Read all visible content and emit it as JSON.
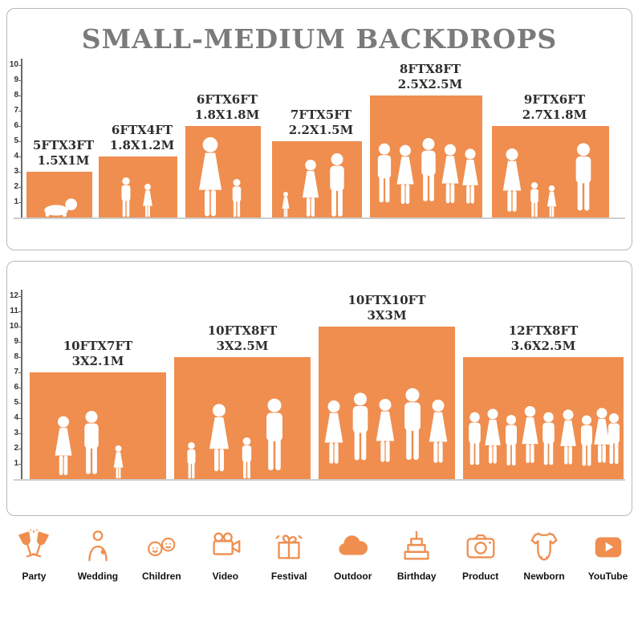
{
  "title": "SMALL-MEDIUM BACKDROPS",
  "colors": {
    "accent": "#EF8E4F",
    "title": "#7A7A7A",
    "label": "#2D2D2D"
  },
  "top_chart": {
    "ruler_max": 10,
    "items": [
      {
        "size_ft": "5FTX3FT",
        "size_m": "1.5X1M"
      },
      {
        "size_ft": "6FTX4FT",
        "size_m": "1.8X1.2M"
      },
      {
        "size_ft": "6FTX6FT",
        "size_m": "1.8X1.8M"
      },
      {
        "size_ft": "7FTX5FT",
        "size_m": "2.2X1.5M"
      },
      {
        "size_ft": "8FTX8FT",
        "size_m": "2.5X2.5M"
      },
      {
        "size_ft": "9FTX6FT",
        "size_m": "2.7X1.8M"
      }
    ]
  },
  "bottom_chart": {
    "ruler_max": 12,
    "items": [
      {
        "size_ft": "10FTX7FT",
        "size_m": "3X2.1M"
      },
      {
        "size_ft": "10FTX8FT",
        "size_m": "3X2.5M"
      },
      {
        "size_ft": "10FTX10FT",
        "size_m": "3X3M"
      },
      {
        "size_ft": "12FTX8FT",
        "size_m": "3.6X2.5M"
      }
    ]
  },
  "categories": [
    {
      "label": "Party"
    },
    {
      "label": "Wedding"
    },
    {
      "label": "Children"
    },
    {
      "label": "Video"
    },
    {
      "label": "Festival"
    },
    {
      "label": "Outdoor"
    },
    {
      "label": "Birthday"
    },
    {
      "label": "Product"
    },
    {
      "label": "Newborn"
    },
    {
      "label": "YouTube"
    }
  ]
}
